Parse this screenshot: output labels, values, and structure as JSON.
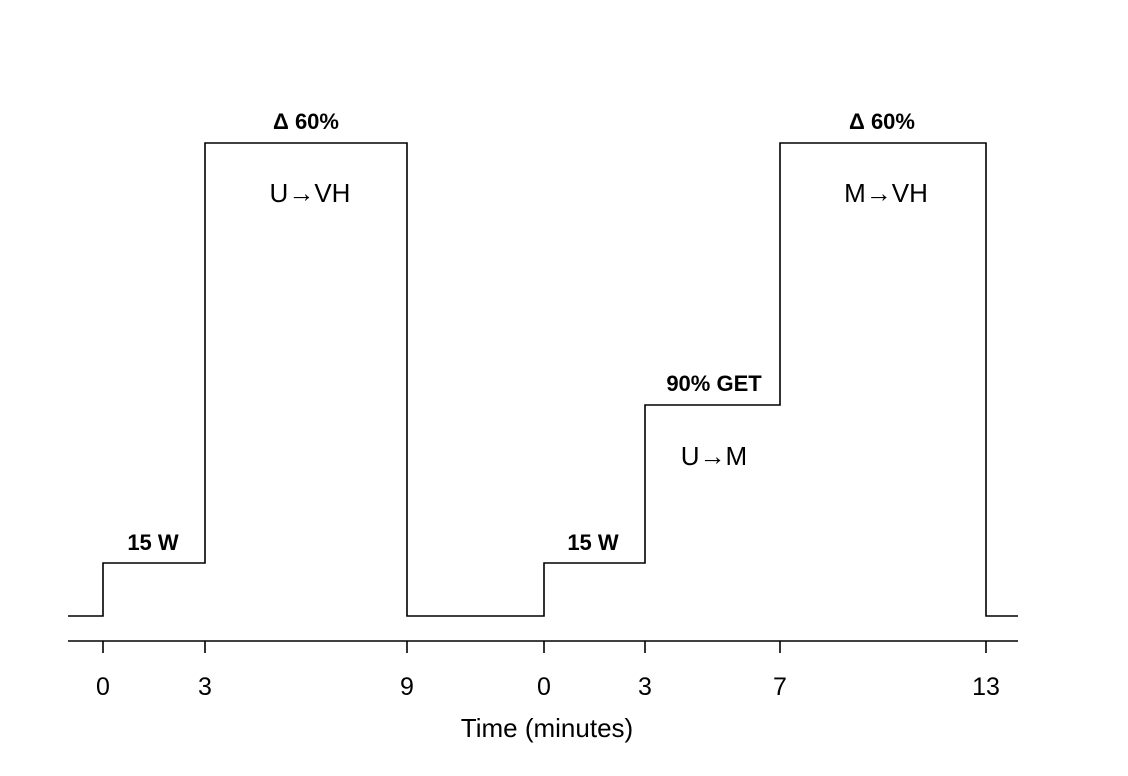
{
  "chart_data": {
    "type": "line",
    "xlabel": "Time (minutes)",
    "protocols": [
      {
        "name": "",
        "steps": [
          {
            "start": 0,
            "end": 3,
            "label": "15 W",
            "sublabel": ""
          },
          {
            "start": 3,
            "end": 9,
            "label": "Δ 60%",
            "sublabel": "U→VH"
          }
        ]
      },
      {
        "name": "",
        "steps": [
          {
            "start": 0,
            "end": 3,
            "label": "15 W",
            "sublabel": ""
          },
          {
            "start": 3,
            "end": 7,
            "label": "90% GET",
            "sublabel": "U→M"
          },
          {
            "start": 7,
            "end": 13,
            "label": "Δ 60%",
            "sublabel": "M→VH"
          }
        ]
      }
    ],
    "ticks": [
      "0",
      "3",
      "9",
      "0",
      "3",
      "7",
      "13"
    ]
  }
}
